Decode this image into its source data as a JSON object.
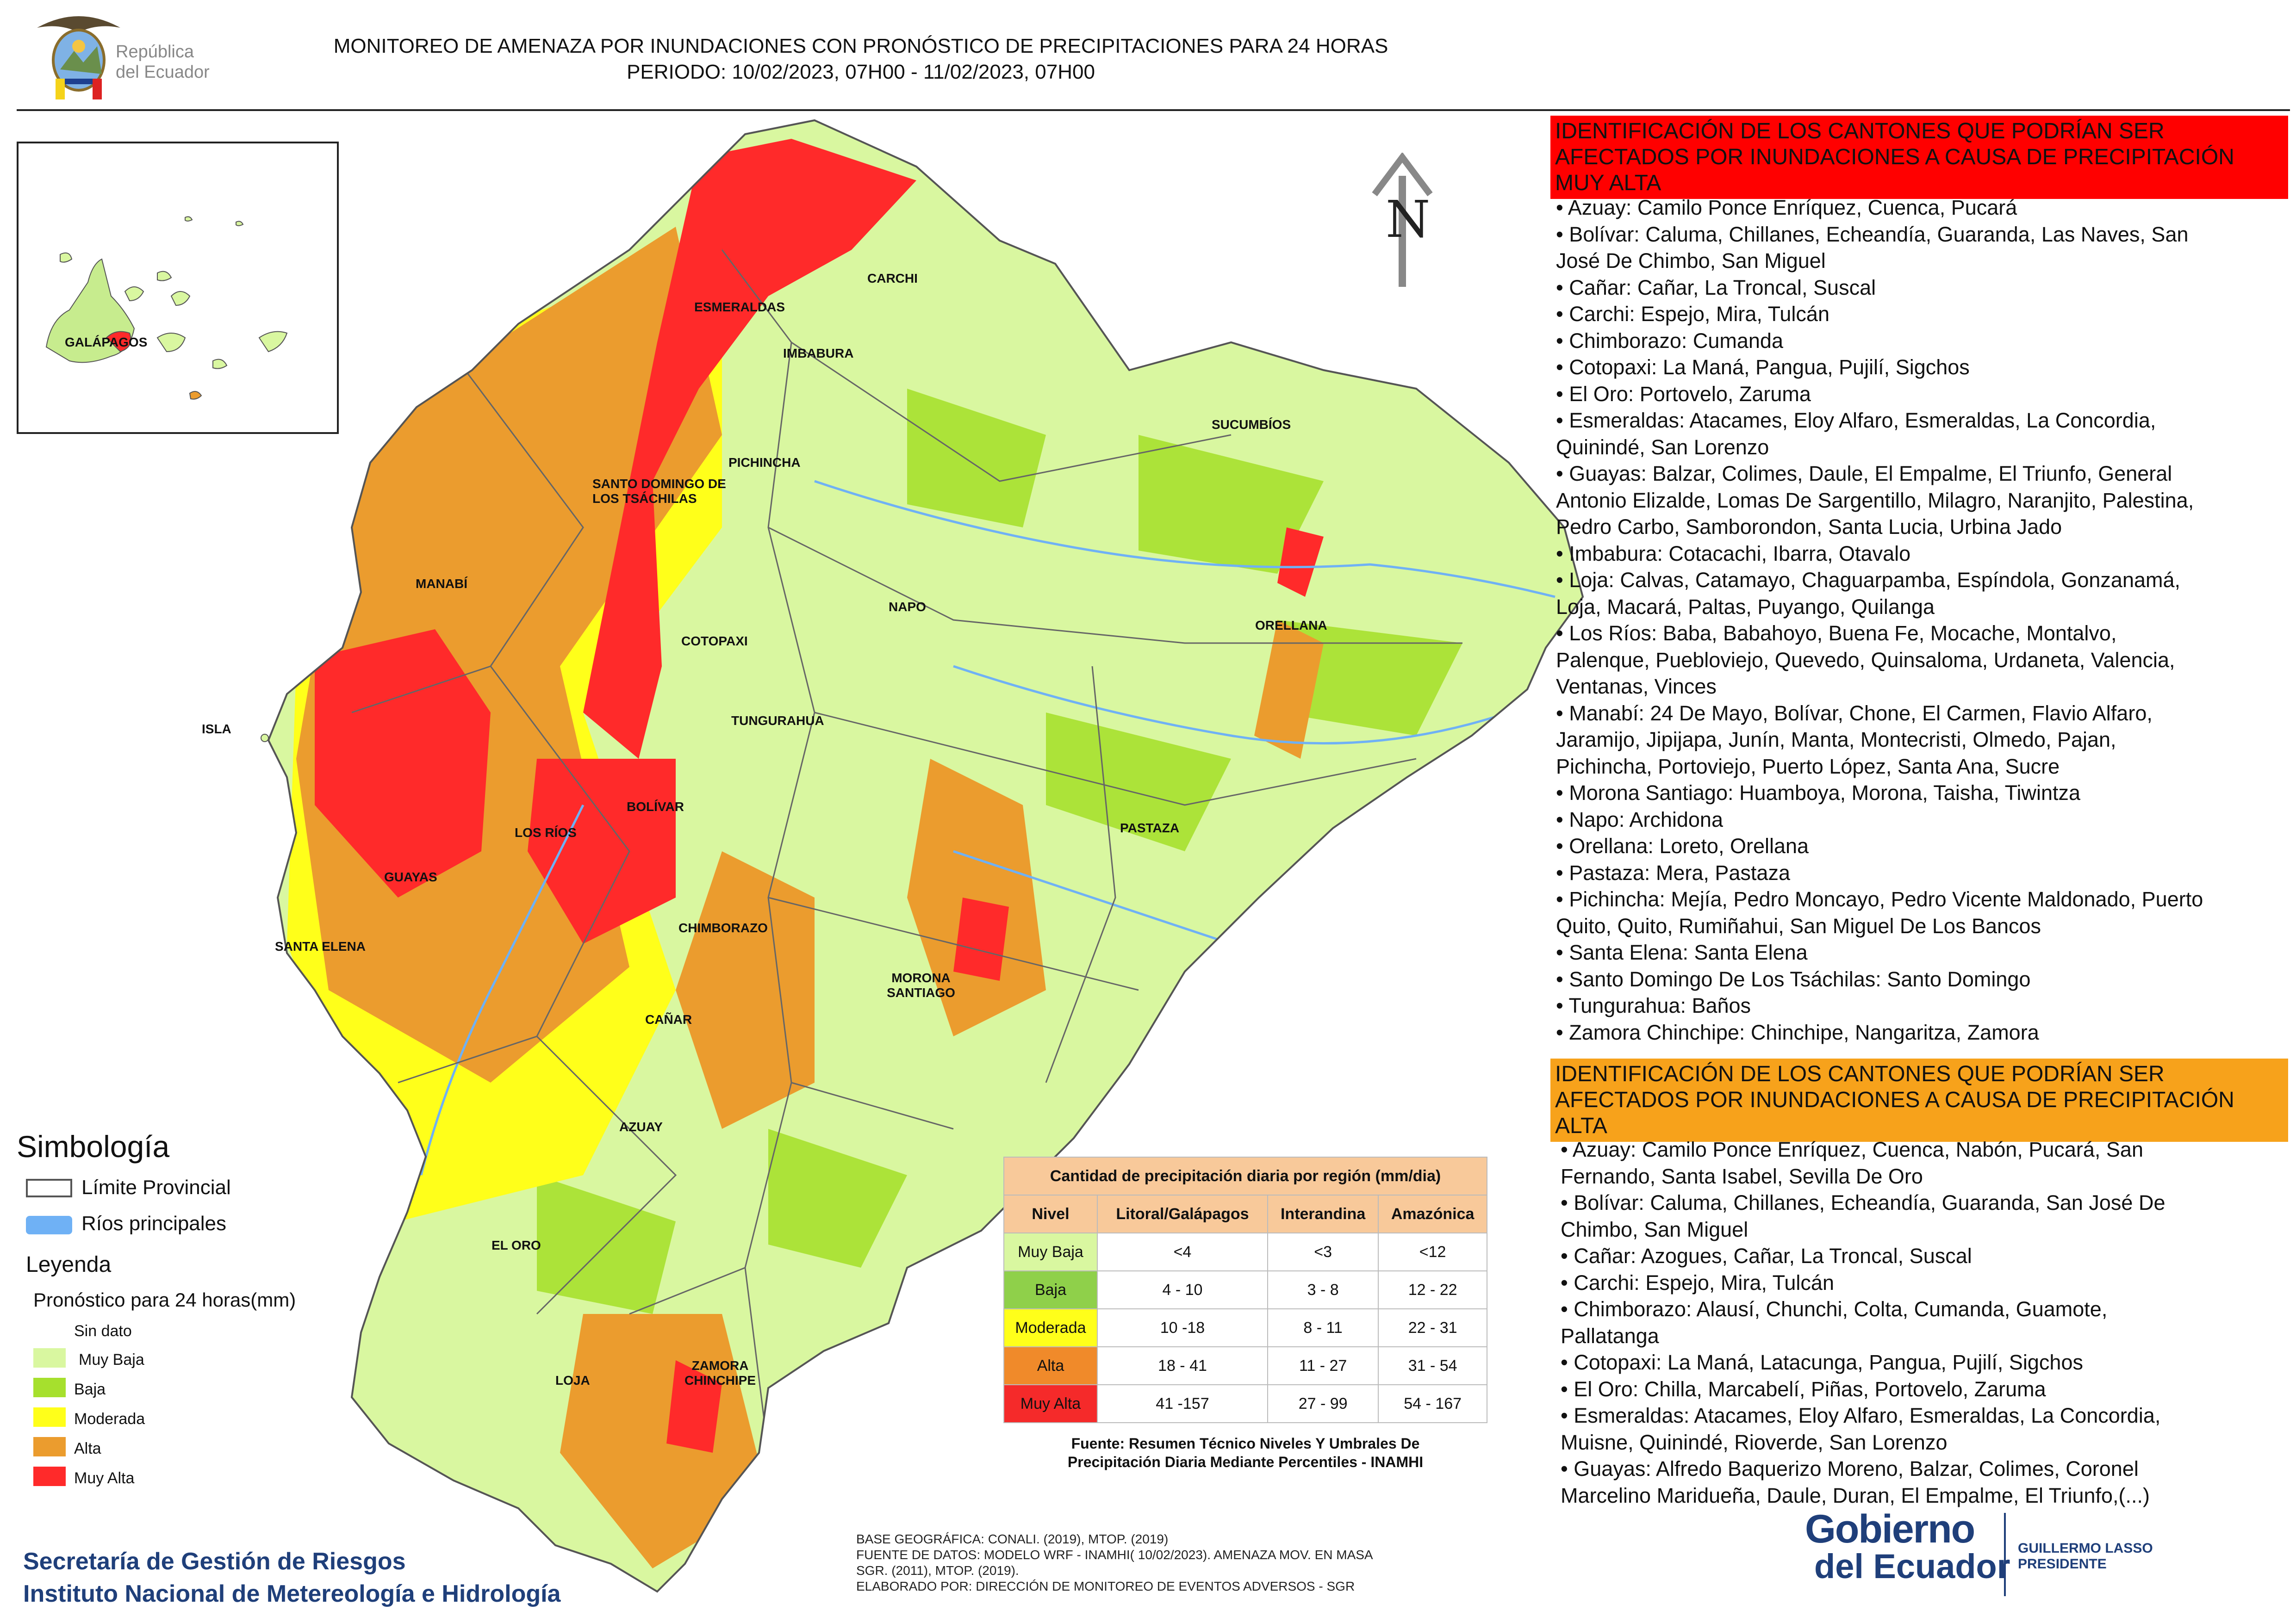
{
  "header": {
    "title_line1": "MONITOREO DE AMENAZA POR INUNDACIONES  CON PRONÓSTICO DE  PRECIPITACIONES PARA 24 HORAS",
    "title_line2": "PERIODO: 10/02/2023, 07H00 - 11/02/2023, 07H00",
    "emblem_label_line1": "República",
    "emblem_label_line2": "del Ecuador"
  },
  "inset_map": {
    "label": "GALÁPAGOS"
  },
  "north_arrow": {
    "letter": "N",
    "icon": "north-arrow-icon"
  },
  "province_labels": [
    "ESMERALDAS",
    "CARCHI",
    "IMBABURA",
    "SUCUMBÍOS",
    "PICHINCHA",
    "SANTO DOMINGO DE LOS TSÁCHILAS",
    "MANABÍ",
    "NAPO",
    "ORELLANA",
    "COTOPAXI",
    "TUNGURAHUA",
    "ISLA",
    "BOLÍVAR",
    "LOS RÍOS",
    "PASTAZA",
    "GUAYAS",
    "CHIMBORAZO",
    "SANTA ELENA",
    "MORONA SANTIAGO",
    "CAÑAR",
    "AZUAY",
    "EL ORO",
    "LOJA",
    "ZAMORA CHINCHIPE"
  ],
  "colors": {
    "muy_baja": "#d9f7a0",
    "baja": "#a6e02d",
    "moderada": "#ffff1a",
    "alta": "#eb9c2e",
    "muy_alta": "#ff2a2a",
    "rivers": "#6fb1f5",
    "banner_muy_alta": "#ff0000",
    "banner_alta": "#f7a21b",
    "table_header": "#f8c99a",
    "institution_text": "#1f3f7a"
  },
  "muy_alta_section": {
    "heading": "IDENTIFICACIÓN DE LOS CANTONES QUE PODRÍAN SER AFECTADOS POR INUNDACIONES  A CAUSA DE PRECIPITACIÓN MUY ALTA",
    "lines": [
      "• Azuay: Camilo Ponce Enríquez, Cuenca, Pucará",
      "• Bolívar: Caluma, Chillanes, Echeandía, Guaranda, Las Naves, San",
      "José De Chimbo, San Miguel",
      "• Cañar: Cañar, La Troncal, Suscal",
      "• Carchi: Espejo, Mira, Tulcán",
      "• Chimborazo: Cumanda",
      "• Cotopaxi: La Maná, Pangua, Pujilí, Sigchos",
      "• El Oro: Portovelo, Zaruma",
      "• Esmeraldas: Atacames, Eloy Alfaro, Esmeraldas, La Concordia,",
      "Quinindé, San Lorenzo",
      "• Guayas: Balzar, Colimes, Daule, El Empalme, El Triunfo, General",
      "Antonio Elizalde, Lomas De Sargentillo, Milagro, Naranjito, Palestina,",
      "Pedro Carbo, Samborondon, Santa Lucia, Urbina Jado",
      "• Imbabura: Cotacachi, Ibarra, Otavalo",
      "• Loja: Calvas, Catamayo, Chaguarpamba, Espíndola, Gonzanamá,",
      "Loja, Macará, Paltas, Puyango, Quilanga",
      "• Los Ríos: Baba, Babahoyo, Buena Fe, Mocache, Montalvo,",
      "Palenque, Puebloviejo, Quevedo, Quinsaloma, Urdaneta, Valencia,",
      "Ventanas, Vinces",
      "• Manabí: 24 De Mayo, Bolívar, Chone, El Carmen, Flavio Alfaro,",
      "Jaramijo, Jipijapa, Junín, Manta, Montecristi, Olmedo, Pajan,",
      "Pichincha, Portoviejo, Puerto López, Santa Ana, Sucre",
      "• Morona Santiago: Huamboya, Morona, Taisha, Tiwintza",
      "• Napo: Archidona",
      "• Orellana: Loreto, Orellana",
      "• Pastaza: Mera, Pastaza",
      "• Pichincha: Mejía, Pedro Moncayo, Pedro Vicente Maldonado, Puerto",
      "Quito, Quito, Rumiñahui, San Miguel De Los Bancos",
      "• Santa Elena: Santa Elena",
      "• Santo Domingo De Los Tsáchilas: Santo Domingo",
      "• Tungurahua: Baños",
      "• Zamora Chinchipe: Chinchipe, Nangaritza, Zamora"
    ]
  },
  "alta_section": {
    "heading": "IDENTIFICACIÓN DE LOS CANTONES QUE  PODRÍAN SER AFECTADOS POR INUNDACIONES  A CAUSA DE PRECIPITACIÓN ALTA",
    "lines": [
      "• Azuay: Camilo Ponce Enríquez, Cuenca, Nabón, Pucará, San",
      "Fernando, Santa Isabel, Sevilla De Oro",
      "• Bolívar: Caluma, Chillanes, Echeandía, Guaranda, San José De",
      "Chimbo, San Miguel",
      "• Cañar: Azogues, Cañar, La Troncal, Suscal",
      "• Carchi: Espejo, Mira, Tulcán",
      "• Chimborazo: Alausí, Chunchi, Colta, Cumanda, Guamote,",
      "Pallatanga",
      "• Cotopaxi: La Maná, Latacunga, Pangua, Pujilí, Sigchos",
      "• El Oro: Chilla, Marcabelí, Piñas, Portovelo, Zaruma",
      "• Esmeraldas: Atacames, Eloy Alfaro, Esmeraldas, La Concordia,",
      "Muisne, Quinindé, Rioverde, San Lorenzo",
      "• Guayas: Alfredo Baquerizo Moreno, Balzar, Colimes, Coronel",
      "Marcelino Maridueña, Daule, Duran, El Empalme, El Triunfo,(...)"
    ]
  },
  "legend": {
    "simbologia_title": "Simbología",
    "limite_label": "Límite Provincial",
    "rios_label": "Ríos principales",
    "leyenda_title": "Leyenda",
    "pronostico_label": "Pronóstico para 24 horas(mm)",
    "items": [
      "Sin dato",
      "Muy Baja",
      "Baja",
      "Moderada",
      "Alta",
      "Muy Alta"
    ]
  },
  "precip_table": {
    "title": "Cantidad de precipitación diaria por región (mm/dia)",
    "headers": [
      "Nivel",
      "Litoral/Galápagos",
      "Interandina",
      "Amazónica"
    ],
    "rows": [
      [
        "Muy Baja",
        "<4",
        "<3",
        "<12"
      ],
      [
        "Baja",
        "4 - 10",
        "3 - 8",
        "12 - 22"
      ],
      [
        "Moderada",
        "10 -18",
        "8 - 11",
        "22 - 31"
      ],
      [
        "Alta",
        "18 - 41",
        "11 - 27",
        "31 - 54"
      ],
      [
        "Muy Alta",
        "41 -157",
        "27 - 99",
        "54 - 167"
      ]
    ],
    "source_line1": "Fuente: Resumen Técnico Niveles Y Umbrales De",
    "source_line2": "Precipitación Diaria Mediante Percentiles - INAMHI"
  },
  "footer": {
    "institution1": "Secretaría de Gestión de Riesgos",
    "institution2": "Instituto Nacional de Metereología e Hidrología",
    "credit1": "BASE GEOGRÁFICA: CONALI. (2019), MTOP. (2019)",
    "credit2": "FUENTE DE DATOS: MODELO WRF - INAMHI( 10/02/2023).  AMENAZA MOV. EN MASA",
    "credit3": "SGR. (2011), MTOP. (2019).",
    "credit4": "ELABORADO POR: DIRECCIÓN DE MONITOREO DE EVENTOS ADVERSOS - SGR",
    "gob_line1": "Gobierno",
    "gob_line2": "del Ecuador",
    "president_name": "GUILLERMO LASSO",
    "president_title": "PRESIDENTE"
  }
}
